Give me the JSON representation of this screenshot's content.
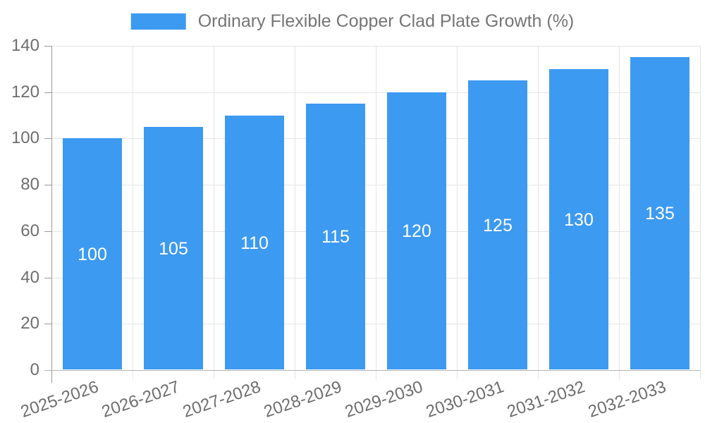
{
  "page": {
    "background": "#FFFFFF"
  },
  "legend": {
    "label": "Ordinary Flexible Copper Clad Plate Growth (%)"
  },
  "chart_data": {
    "type": "bar",
    "title": "Ordinary Flexible Copper Clad Plate Growth (%)",
    "categories": [
      "2025-2026",
      "2026-2027",
      "2027-2028",
      "2028-2029",
      "2029-2030",
      "2030-2031",
      "2031-2032",
      "2032-2033"
    ],
    "values": [
      100,
      105,
      110,
      115,
      120,
      125,
      130,
      135
    ],
    "xlabel": "",
    "ylabel": "",
    "ylim": [
      0,
      140
    ],
    "ytick_step": 20,
    "ytick_labels": [
      "0",
      "20",
      "40",
      "60",
      "80",
      "100",
      "120",
      "140"
    ],
    "grid": true,
    "legend_position": "top-center",
    "bar_color": "#3D9AF1",
    "bar_label_color": "#FFFFFF",
    "grid_color": "#E4E4E4",
    "y_axis_color": "#999999",
    "x_axis_color": "#B3B3B3",
    "tick_label_color": "#6E6E6E",
    "x_tick_rotation_deg": -19
  }
}
